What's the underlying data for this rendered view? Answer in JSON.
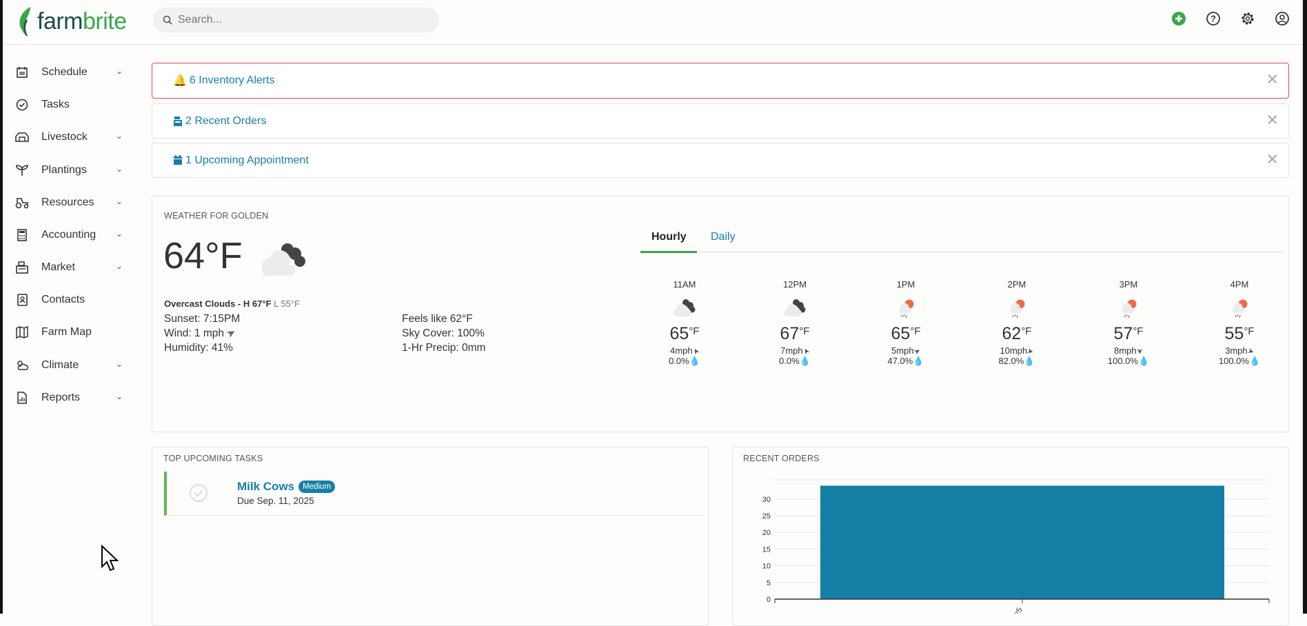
{
  "app": {
    "logo_part1": "farm",
    "logo_part2": "brite"
  },
  "search": {
    "placeholder": "Search..."
  },
  "header_icons": [
    "add-icon",
    "help-icon",
    "settings-icon",
    "account-icon"
  ],
  "colors": {
    "brand_green": "#3aa649",
    "link_blue": "#1a7da8",
    "alert_red": "#e0475c",
    "bar": "#1580a6"
  },
  "sidebar": {
    "items": [
      {
        "label": "Schedule",
        "icon": "calendar-icon",
        "expandable": true
      },
      {
        "label": "Tasks",
        "icon": "check-circle-icon",
        "expandable": false
      },
      {
        "label": "Livestock",
        "icon": "barn-icon",
        "expandable": true
      },
      {
        "label": "Plantings",
        "icon": "sprout-icon",
        "expandable": true
      },
      {
        "label": "Resources",
        "icon": "tractor-icon",
        "expandable": true
      },
      {
        "label": "Accounting",
        "icon": "calculator-icon",
        "expandable": true
      },
      {
        "label": "Market",
        "icon": "register-icon",
        "expandable": true
      },
      {
        "label": "Contacts",
        "icon": "contacts-icon",
        "expandable": false
      },
      {
        "label": "Farm Map",
        "icon": "map-icon",
        "expandable": false
      },
      {
        "label": "Climate",
        "icon": "climate-icon",
        "expandable": true
      },
      {
        "label": "Reports",
        "icon": "report-icon",
        "expandable": true
      }
    ]
  },
  "alerts": [
    {
      "label": "6 Inventory Alerts",
      "icon": "bell-icon"
    },
    {
      "label": "2 Recent Orders",
      "icon": "register-icon"
    },
    {
      "label": "1 Upcoming Appointment",
      "icon": "calendar-icon"
    }
  ],
  "weather": {
    "title": "WEATHER FOR GOLDEN",
    "temp": "64°F",
    "summary": "Overcast Clouds - H 67°F",
    "low": "L 55°F",
    "sunset": "Sunset: 7:15PM",
    "wind": "Wind: 1 mph",
    "humidity": "Humidity: 41%",
    "feels": "Feels like 62°F",
    "sky": "Sky Cover: 100%",
    "precip": "1-Hr Precip: 0mm",
    "tabs": [
      {
        "label": "Hourly",
        "active": true
      },
      {
        "label": "Daily",
        "active": false
      }
    ],
    "unit": "°F",
    "hourly": [
      {
        "time": "11AM",
        "temp": "65",
        "wind": "4mph",
        "precip": "0.0%",
        "cond": "overcast",
        "wind_dir": 240
      },
      {
        "time": "12PM",
        "temp": "67",
        "wind": "7mph",
        "precip": "0.0%",
        "cond": "overcast",
        "wind_dir": 240
      },
      {
        "time": "1PM",
        "temp": "65",
        "wind": "5mph",
        "precip": "47.0%",
        "cond": "rain",
        "wind_dir": 330
      },
      {
        "time": "2PM",
        "temp": "62",
        "wind": "10mph",
        "precip": "82.0%",
        "cond": "rain",
        "wind_dir": 20
      },
      {
        "time": "3PM",
        "temp": "57",
        "wind": "8mph",
        "precip": "100.0%",
        "cond": "rain",
        "wind_dir": 90
      },
      {
        "time": "4PM",
        "temp": "55",
        "wind": "3mph",
        "precip": "100.0%",
        "cond": "rain",
        "wind_dir": 20
      }
    ]
  },
  "tasks": {
    "title": "TOP UPCOMING TASKS",
    "items": [
      {
        "name": "Milk Cows",
        "priority": "Medium",
        "due": "Due Sep. 11, 2025"
      }
    ]
  },
  "orders": {
    "title": "RECENT ORDERS"
  },
  "chart_data": {
    "type": "bar",
    "title": "RECENT ORDERS",
    "categories": [
      "25"
    ],
    "values": [
      34
    ],
    "yticks": [
      0,
      5,
      10,
      15,
      20,
      25,
      30
    ],
    "ylim": [
      0,
      34
    ],
    "grid": true
  }
}
